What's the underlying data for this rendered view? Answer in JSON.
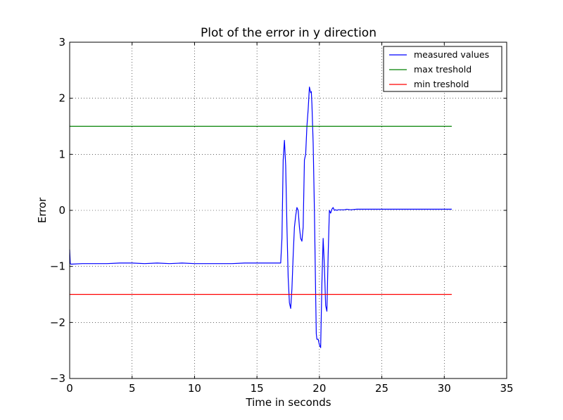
{
  "chart_data": {
    "type": "line",
    "title": "Plot of the error in y direction",
    "xlabel": "Time in seconds",
    "ylabel": "Error",
    "xlim": [
      0,
      35
    ],
    "ylim": [
      -3,
      3
    ],
    "xticks": [
      0,
      5,
      10,
      15,
      20,
      25,
      30,
      35
    ],
    "yticks": [
      -3,
      -2,
      -1,
      0,
      1,
      2,
      3
    ],
    "xtick_labels": [
      "0",
      "5",
      "10",
      "15",
      "20",
      "25",
      "30",
      "35"
    ],
    "ytick_labels": [
      "−3",
      "−2",
      "−1",
      "0",
      "1",
      "2",
      "3"
    ],
    "grid": true,
    "legend_position": "top-right",
    "series": [
      {
        "name": "measured values",
        "color": "#0000ff",
        "x": [
          0.0,
          0.05,
          0.1,
          1.0,
          2.0,
          3.0,
          4.0,
          5.0,
          6.0,
          7.0,
          8.0,
          9.0,
          10.0,
          11.0,
          12.0,
          13.0,
          14.0,
          15.0,
          16.0,
          16.9,
          17.0,
          17.1,
          17.2,
          17.3,
          17.4,
          17.5,
          17.6,
          17.7,
          17.8,
          17.9,
          18.0,
          18.1,
          18.2,
          18.3,
          18.4,
          18.5,
          18.6,
          18.7,
          18.8,
          18.9,
          19.0,
          19.1,
          19.2,
          19.3,
          19.35,
          19.4,
          19.5,
          19.6,
          19.7,
          19.75,
          19.8,
          19.9,
          20.0,
          20.1,
          20.2,
          20.3,
          20.4,
          20.5,
          20.6,
          20.7,
          20.8,
          20.9,
          21.0,
          21.1,
          21.2,
          21.3,
          21.4,
          21.5,
          21.6,
          21.7,
          21.8,
          21.9,
          22.0,
          22.2,
          22.5,
          23.0,
          24.0,
          25.0,
          26.0,
          27.0,
          28.0,
          29.0,
          30.0,
          30.6
        ],
        "y": [
          -0.7,
          -0.95,
          -0.96,
          -0.95,
          -0.95,
          -0.95,
          -0.94,
          -0.94,
          -0.95,
          -0.94,
          -0.95,
          -0.94,
          -0.95,
          -0.95,
          -0.95,
          -0.95,
          -0.94,
          -0.94,
          -0.94,
          -0.94,
          -0.5,
          0.9,
          1.25,
          0.8,
          -0.3,
          -1.2,
          -1.65,
          -1.75,
          -1.4,
          -0.8,
          -0.3,
          -0.1,
          0.05,
          0.0,
          -0.3,
          -0.5,
          -0.55,
          -0.3,
          0.9,
          1.0,
          1.5,
          1.8,
          2.2,
          2.1,
          2.12,
          1.9,
          1.2,
          0.0,
          -1.5,
          -2.2,
          -2.3,
          -2.3,
          -2.4,
          -2.45,
          -1.3,
          -0.5,
          -1.0,
          -1.7,
          -1.8,
          -0.8,
          0.0,
          -0.05,
          0.02,
          0.05,
          0.0,
          0.01,
          0.0,
          0.01,
          0.01,
          0.01,
          0.01,
          0.01,
          0.01,
          0.02,
          0.01,
          0.02,
          0.02,
          0.02,
          0.02,
          0.02,
          0.02,
          0.02,
          0.02,
          0.02
        ]
      },
      {
        "name": "max treshold",
        "color": "#008000",
        "x": [
          0.0,
          30.6
        ],
        "y": [
          1.5,
          1.5
        ]
      },
      {
        "name": "min treshold",
        "color": "#ff0000",
        "x": [
          0.0,
          30.6
        ],
        "y": [
          -1.5,
          -1.5
        ]
      }
    ]
  }
}
